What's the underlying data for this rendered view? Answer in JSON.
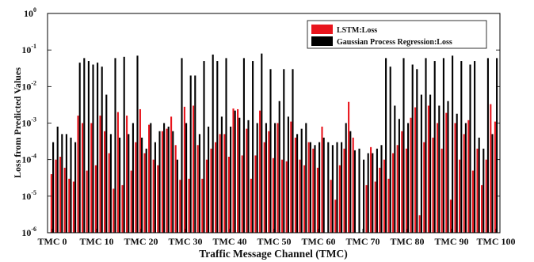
{
  "chart_data": {
    "type": "bar",
    "title": "",
    "xlabel": "Traffic Message Channel (TMC)",
    "ylabel": "Loss from Predicted Values",
    "y_scale": "log",
    "ylim": [
      1e-06,
      1
    ],
    "y_ticks": [
      {
        "value": 1e-06,
        "base": "10",
        "exp": "-6"
      },
      {
        "value": 1e-05,
        "base": "10",
        "exp": "-5"
      },
      {
        "value": 0.0001,
        "base": "10",
        "exp": "-4"
      },
      {
        "value": 0.001,
        "base": "10",
        "exp": "-3"
      },
      {
        "value": 0.01,
        "base": "10",
        "exp": "-2"
      },
      {
        "value": 0.1,
        "base": "10",
        "exp": "-1"
      },
      {
        "value": 1,
        "base": "10",
        "exp": "0"
      }
    ],
    "x_tick_labels": [
      {
        "index": 0,
        "label": "TMC 0"
      },
      {
        "index": 10,
        "label": "TMC 10"
      },
      {
        "index": 20,
        "label": "TMC 20"
      },
      {
        "index": 30,
        "label": "TMC 30"
      },
      {
        "index": 40,
        "label": "TMC 40"
      },
      {
        "index": 50,
        "label": "TMC 50"
      },
      {
        "index": 60,
        "label": "TMC 60"
      },
      {
        "index": 70,
        "label": "TMC 70"
      },
      {
        "index": 80,
        "label": "TMC 80"
      },
      {
        "index": 90,
        "label": "TMC 90"
      },
      {
        "index": 100,
        "label": "TMC 100"
      }
    ],
    "categories": [
      "0",
      "1",
      "2",
      "3",
      "4",
      "5",
      "6",
      "7",
      "8",
      "9",
      "10",
      "11",
      "12",
      "13",
      "14",
      "15",
      "16",
      "17",
      "18",
      "19",
      "20",
      "21",
      "22",
      "23",
      "24",
      "25",
      "26",
      "27",
      "28",
      "29",
      "30",
      "31",
      "32",
      "33",
      "34",
      "35",
      "36",
      "37",
      "38",
      "39",
      "40",
      "41",
      "42",
      "43",
      "44",
      "45",
      "46",
      "47",
      "48",
      "49",
      "50",
      "51",
      "52",
      "53",
      "54",
      "55",
      "56",
      "57",
      "58",
      "59",
      "60",
      "61",
      "62",
      "63",
      "64",
      "65",
      "66",
      "67",
      "68",
      "69",
      "70",
      "71",
      "72",
      "73",
      "74",
      "75",
      "76",
      "77",
      "78",
      "79",
      "80",
      "81",
      "82",
      "83",
      "84",
      "85",
      "86",
      "87",
      "88",
      "89",
      "90",
      "91",
      "92",
      "93",
      "94",
      "95",
      "96",
      "97",
      "98",
      "99",
      "100"
    ],
    "legend_position": "top-right",
    "series": [
      {
        "name": "LSTM:Loss",
        "color": "#e8141c",
        "values": [
          4e-05,
          0.0001,
          0.00012,
          6e-05,
          3e-05,
          2.5e-05,
          0.0016,
          0.001,
          5e-05,
          0.001,
          7e-05,
          0.0016,
          0.0006,
          0.00015,
          1.6e-05,
          0.002,
          2e-05,
          0.0016,
          5e-05,
          0.0003,
          0.0024,
          0.00015,
          0.0009,
          0.0001,
          7e-05,
          0.0006,
          0.0007,
          0.0015,
          0.00025,
          2.8e-05,
          0.0028,
          3e-05,
          0.003,
          0.00025,
          3e-05,
          0.0001,
          0.0002,
          0.0003,
          0.0005,
          0.0005,
          0.00012,
          0.0025,
          0.0024,
          0.00013,
          0.0007,
          3e-05,
          0.00013,
          0.0022,
          0.0003,
          0.0006,
          0.00011,
          0.001,
          0.0001,
          9e-05,
          0.0011,
          0.0004,
          0.0001,
          7e-05,
          0.0003,
          0.0002,
          6e-05,
          0.0008,
          1e-06,
          2.8e-05,
          8e-06,
          7e-05,
          0.0002,
          0.0038,
          0.0004,
          1e-06,
          1e-06,
          2e-05,
          0.00022,
          2.5e-05,
          6e-05,
          0.0001,
          3e-05,
          0.00015,
          0.00025,
          0.0006,
          0.0002,
          0.0014,
          0.0027,
          3e-06,
          0.0003,
          0.003,
          0.0004,
          0.001,
          0.0002,
          0.0019,
          8e-06,
          0.001,
          0.0001,
          0.0005,
          0.0012,
          5e-05,
          0.0002,
          2e-05,
          0.0001,
          0.0033,
          0.0011
        ]
      },
      {
        "name": "Gaussian Process Regression:Loss",
        "color": "#000000",
        "values": [
          0.0003,
          0.0008,
          0.0005,
          0.0005,
          0.0004,
          0.0003,
          0.045,
          0.06,
          0.05,
          0.04,
          0.045,
          0.035,
          0.006,
          0.0005,
          0.06,
          0.0004,
          0.065,
          0.0005,
          0.001,
          0.07,
          0.0004,
          0.0002,
          0.001,
          0.0003,
          0.0006,
          0.001,
          0.0008,
          0.0006,
          0.0001,
          0.06,
          0.001,
          0.02,
          0.02,
          0.0005,
          0.05,
          0.0008,
          0.075,
          0.05,
          0.0015,
          0.06,
          0.0008,
          0.0022,
          0.0014,
          0.06,
          0.0012,
          0.05,
          0.001,
          0.08,
          0.001,
          0.03,
          0.001,
          0.004,
          0.03,
          0.0015,
          0.03,
          0.0005,
          0.0007,
          0.001,
          0.0003,
          0.00025,
          0.0003,
          0.0004,
          0.0003,
          0.00025,
          0.0003,
          0.0003,
          0.001,
          0.0006,
          0.00018,
          0.0002,
          0.0001,
          0.00015,
          0.00015,
          0.0002,
          0.00025,
          0.06,
          0.035,
          0.003,
          0.0013,
          0.06,
          0.001,
          0.04,
          0.03,
          0.006,
          0.06,
          0.006,
          0.05,
          0.003,
          0.06,
          0.004,
          0.07,
          0.0018,
          0.05,
          0.001,
          0.04,
          0.05,
          0.0004,
          0.0002,
          0.06,
          0.0005,
          0.06
        ]
      }
    ]
  }
}
